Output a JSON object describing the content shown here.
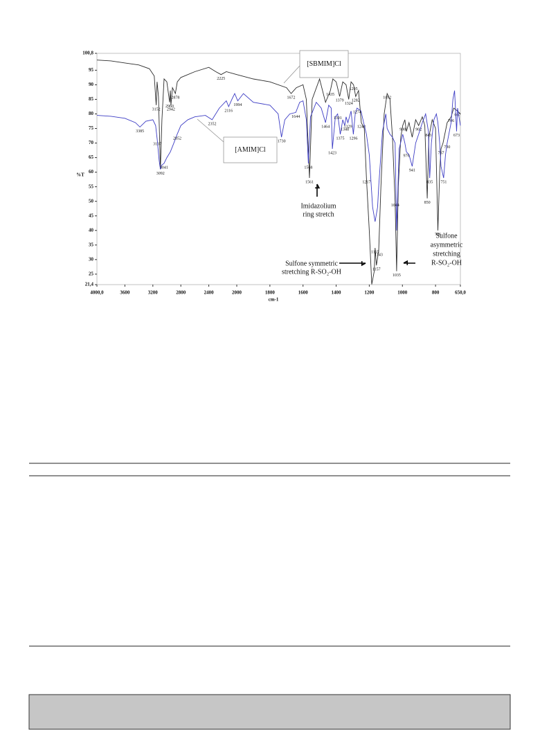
{
  "chart_data": {
    "type": "line",
    "ylabel": "%T",
    "xlabel": "cm-1",
    "xlim": [
      4000,
      650
    ],
    "x_break": 2000,
    "ylim": [
      21.4,
      100.8
    ],
    "xticks": [
      {
        "value": 4000,
        "label": "4000,0"
      },
      3600,
      3200,
      2800,
      2400,
      2000,
      1800,
      1600,
      1400,
      1200,
      1000,
      800,
      {
        "value": 650,
        "label": "650,0"
      }
    ],
    "yticks": [
      {
        "value": 100.8,
        "label": "100,8"
      },
      95,
      90,
      85,
      80,
      75,
      70,
      65,
      60,
      55,
      50,
      45,
      40,
      35,
      30,
      25,
      {
        "value": 21.4,
        "label": "21,4"
      }
    ],
    "series": [
      {
        "name": "[SBMIM]Cl",
        "color": "#2b2b2b",
        "x": [
          4000,
          3800,
          3600,
          3400,
          3250,
          3180,
          3152,
          3140,
          3120,
          3092,
          3070,
          3040,
          3000,
          2960,
          2950,
          2942,
          2920,
          2878,
          2850,
          2800,
          2600,
          2400,
          2300,
          2225,
          2150,
          2000,
          1900,
          1800,
          1700,
          1672,
          1640,
          1600,
          1580,
          1561,
          1545,
          1500,
          1464,
          1435,
          1420,
          1400,
          1379,
          1360,
          1340,
          1324,
          1310,
          1295,
          1282,
          1265,
          1248,
          1230,
          1217,
          1200,
          1185,
          1170,
          1165,
          1157,
          1143,
          1130,
          1110,
          1092,
          1075,
          1060,
          1044,
          1035,
          1025,
          1010,
          998,
          985,
          976,
          960,
          941,
          920,
          902,
          880,
          865,
          850,
          840,
          820,
          800,
          786,
          775,
          767,
          755,
          730,
          706,
          690,
          667,
          650
        ],
        "values": [
          98.5,
          98.2,
          97.5,
          96.8,
          95.5,
          93,
          83,
          91,
          86,
          61,
          78,
          92,
          91,
          84,
          88,
          83,
          89,
          87,
          91,
          92.5,
          94.5,
          96,
          94.5,
          93.5,
          94.5,
          93.5,
          92,
          91,
          89,
          87,
          89,
          90,
          85,
          58,
          85,
          92,
          84,
          88,
          92,
          91,
          86,
          91,
          90,
          85,
          91,
          90,
          86,
          88,
          77,
          75,
          58,
          40,
          21.5,
          26,
          34,
          28,
          33,
          55,
          80,
          87,
          85,
          72,
          50,
          26,
          55,
          72,
          76,
          78,
          74,
          77,
          72,
          78,
          76,
          79,
          76,
          51,
          72,
          78,
          75,
          40,
          60,
          68,
          70,
          77,
          79,
          82,
          81,
          80
        ],
        "peaks": [
          3152,
          3092,
          2960,
          2942,
          2878,
          2225,
          1672,
          1561,
          1435,
          1379,
          1324,
          1295,
          1282,
          1248,
          1217,
          1165,
          1157,
          1143,
          1092,
          1044,
          1035,
          998,
          902,
          850,
          786,
          767,
          706,
          667
        ]
      },
      {
        "name": "[AMIM]Cl",
        "color": "#3b3bc4",
        "x": [
          4000,
          3800,
          3600,
          3450,
          3385,
          3300,
          3200,
          3160,
          3137,
          3110,
          3092,
          3070,
          3041,
          3000,
          2950,
          2900,
          2852,
          2800,
          2700,
          2600,
          2450,
          2352,
          2250,
          2150,
          2116,
          2070,
          2030,
          1994,
          1960,
          1900,
          1800,
          1750,
          1730,
          1710,
          1680,
          1644,
          1620,
          1600,
          1580,
          1568,
          1555,
          1520,
          1490,
          1464,
          1445,
          1430,
          1423,
          1405,
          1391,
          1375,
          1360,
          1348,
          1340,
          1329,
          1310,
          1296,
          1285,
          1274,
          1250,
          1230,
          1217,
          1200,
          1180,
          1165,
          1150,
          1143,
          1120,
          1100,
          1092,
          1075,
          1060,
          1044,
          1035,
          1020,
          998,
          985,
          976,
          960,
          941,
          920,
          902,
          880,
          860,
          843,
          835,
          825,
          810,
          795,
          786,
          775,
          767,
          751,
          740,
          730,
          720,
          706,
          695,
          685,
          673,
          667,
          650
        ],
        "values": [
          79.5,
          79.2,
          78.5,
          77,
          75.5,
          77.5,
          78,
          76,
          71,
          64,
          61,
          62.5,
          63,
          65,
          67,
          70,
          73,
          76,
          78,
          79,
          79.5,
          78,
          82,
          84.5,
          82.5,
          85,
          87,
          84.5,
          87,
          84,
          83,
          80,
          72,
          78,
          80,
          80.5,
          84,
          84.5,
          78,
          63,
          79,
          84,
          82,
          77,
          83,
          82,
          68,
          79,
          80,
          73,
          78,
          76,
          79,
          77,
          81,
          73,
          80,
          82,
          81,
          76,
          73,
          66,
          48,
          43,
          48,
          55,
          74,
          80,
          75,
          73,
          72,
          70,
          40,
          68,
          73,
          70,
          67,
          66,
          62,
          70,
          73,
          77,
          80,
          74,
          58,
          70,
          78,
          80,
          77,
          70,
          62,
          58,
          66,
          70,
          73,
          77,
          85,
          88,
          74,
          82,
          76
        ],
        "peaks": [
          3385,
          3137,
          3041,
          2852,
          2352,
          2116,
          1994,
          1730,
          1644,
          1568,
          1464,
          1423,
          1391,
          1375,
          1348,
          1329,
          1296,
          1274,
          976,
          941,
          843,
          835,
          751,
          730,
          673
        ]
      }
    ],
    "annotations": [
      [
        "Imidazolium",
        "ring stretch"
      ],
      [
        "Sulfone symmetric",
        "stretching R-SO₂-OH"
      ],
      [
        "Sulfone",
        "asymmetric",
        "stretching",
        "R-SO₂-OH"
      ]
    ]
  }
}
